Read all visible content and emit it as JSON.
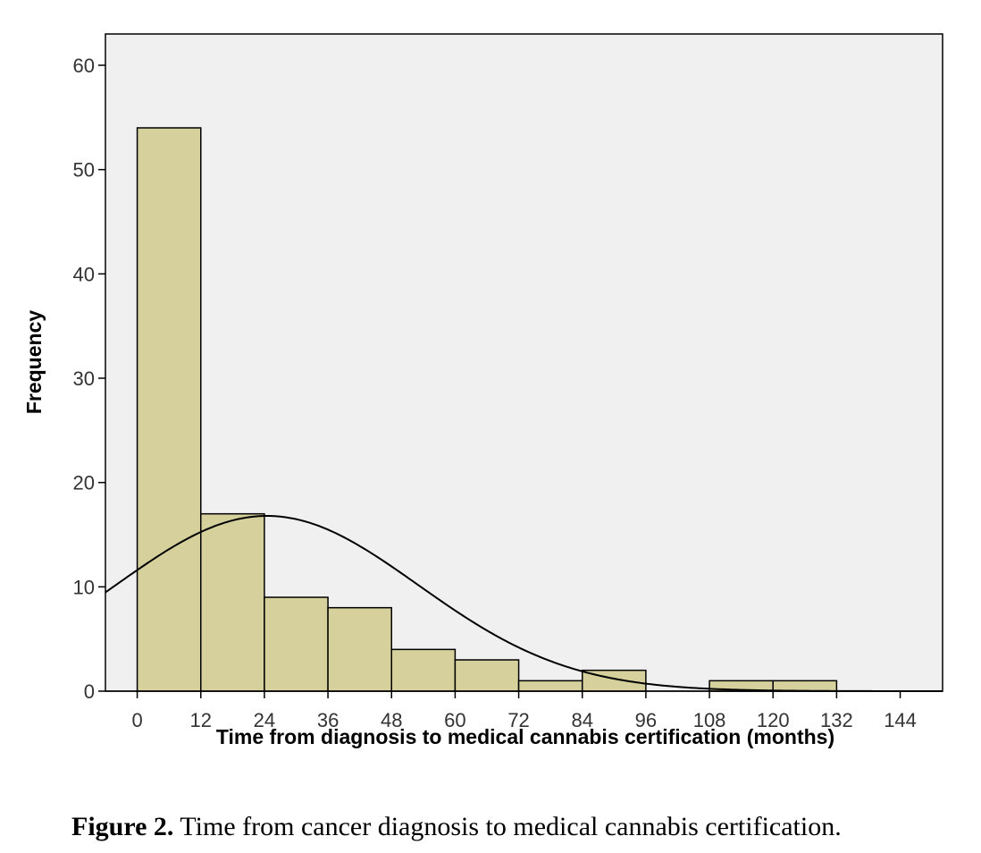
{
  "chart_data": {
    "type": "bar",
    "subtype": "histogram",
    "title": "",
    "xlabel": "Time from diagnosis to medical cannabis certification  (months)",
    "ylabel": "Frequency",
    "xlim": [
      -6,
      152
    ],
    "ylim": [
      0,
      63
    ],
    "x_ticks": [
      0,
      12,
      24,
      36,
      48,
      60,
      72,
      84,
      96,
      108,
      120,
      132,
      144
    ],
    "y_ticks": [
      0,
      10,
      20,
      30,
      40,
      50,
      60
    ],
    "bin_width": 12,
    "bins": [
      {
        "start": 0,
        "value": 54
      },
      {
        "start": 12,
        "value": 17
      },
      {
        "start": 24,
        "value": 9
      },
      {
        "start": 36,
        "value": 8
      },
      {
        "start": 48,
        "value": 4
      },
      {
        "start": 60,
        "value": 3
      },
      {
        "start": 72,
        "value": 1
      },
      {
        "start": 84,
        "value": 2
      },
      {
        "start": 108,
        "value": 1
      },
      {
        "start": 120,
        "value": 1
      }
    ],
    "normal_curve": {
      "mean": 24.5,
      "sd": 28.5,
      "count": 100
    },
    "grid": false,
    "colors": {
      "bar_fill": "#d6d09c",
      "bar_stroke": "#000000",
      "plot_bg": "#f0f0f0",
      "curve": "#000000"
    }
  },
  "caption": {
    "label": "Figure 2.",
    "text": " Time from cancer diagnosis to medical cannabis certification."
  }
}
